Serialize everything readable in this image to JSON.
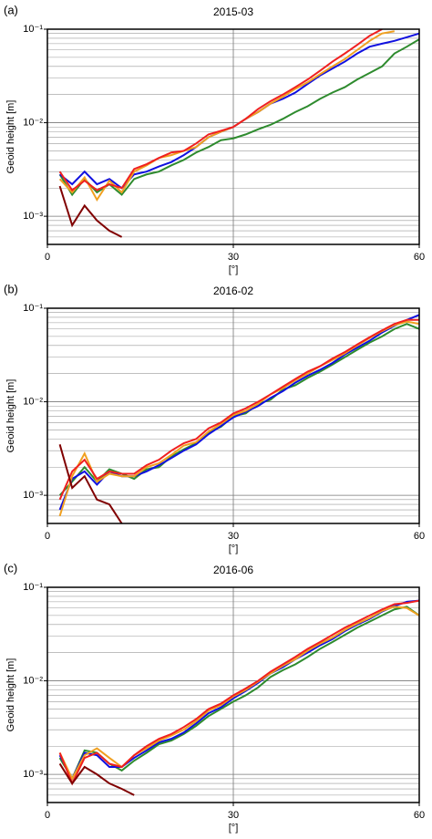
{
  "chart_data": [
    {
      "type": "line",
      "panel_label": "(a)",
      "title": "2015-03",
      "ylabel": "Geoid height [m]",
      "xlabel": "[°]",
      "x": [
        2,
        4,
        6,
        8,
        10,
        12,
        14,
        16,
        18,
        20,
        22,
        24,
        26,
        28,
        30,
        32,
        34,
        36,
        38,
        40,
        42,
        44,
        46,
        48,
        50,
        52,
        54,
        56,
        58,
        60
      ],
      "xlim": [
        0,
        60
      ],
      "xticks": [
        0,
        30,
        60
      ],
      "ylim": [
        0.0005,
        0.1
      ],
      "log_y": true,
      "grid": true,
      "yticks": [
        {
          "value": 0.001,
          "label": "10⁻³"
        },
        {
          "value": 0.01,
          "label": "10⁻²"
        },
        {
          "value": 0.1,
          "label": "10⁻¹"
        }
      ],
      "minor_yticks": [
        0.0006,
        0.0007,
        0.0008,
        0.0009,
        0.002,
        0.003,
        0.004,
        0.005,
        0.006,
        0.007,
        0.008,
        0.009,
        0.02,
        0.03,
        0.04,
        0.05,
        0.06,
        0.07,
        0.08,
        0.09
      ],
      "series": [
        {
          "color": "#2e8b2e",
          "values": [
            0.0028,
            0.0017,
            0.0025,
            0.0018,
            0.0022,
            0.0017,
            0.0025,
            0.0028,
            0.003,
            0.0035,
            0.004,
            0.0048,
            0.0055,
            0.0065,
            0.0068,
            0.0075,
            0.0085,
            0.0095,
            0.011,
            0.013,
            0.015,
            0.018,
            0.021,
            0.024,
            0.029,
            0.034,
            0.04,
            0.055,
            0.065,
            0.078
          ]
        },
        {
          "color": "#1010e0",
          "values": [
            0.0028,
            0.0022,
            0.003,
            0.0022,
            0.0025,
            0.002,
            0.0028,
            0.003,
            0.0034,
            0.0038,
            0.0045,
            0.0055,
            0.007,
            0.008,
            0.009,
            0.011,
            0.013,
            0.016,
            0.018,
            0.021,
            0.026,
            0.032,
            0.038,
            0.045,
            0.055,
            0.065,
            0.07,
            0.075,
            0.082,
            0.09
          ]
        },
        {
          "color": "#f0a020",
          "values": [
            0.0025,
            0.0018,
            0.0026,
            0.0015,
            0.0024,
            0.0018,
            0.003,
            0.0035,
            0.0042,
            0.0045,
            0.005,
            0.0055,
            0.007,
            0.008,
            0.009,
            0.011,
            0.013,
            0.016,
            0.019,
            0.023,
            0.027,
            0.033,
            0.04,
            0.048,
            0.06,
            0.075,
            0.09,
            0.095,
            null,
            null
          ]
        },
        {
          "color": "#f02020",
          "values": [
            0.003,
            0.0019,
            0.0024,
            0.0019,
            0.0022,
            0.002,
            0.0032,
            0.0036,
            0.0042,
            0.0048,
            0.005,
            0.006,
            0.0075,
            0.0082,
            0.009,
            0.011,
            0.014,
            0.017,
            0.02,
            0.024,
            0.029,
            0.036,
            0.045,
            0.055,
            0.068,
            0.085,
            0.1,
            null,
            null,
            null
          ]
        },
        {
          "color": "#800000",
          "values": [
            0.0021,
            0.0008,
            0.0013,
            0.0009,
            0.0007,
            0.0006,
            null,
            null,
            null,
            null,
            null,
            null,
            null,
            null,
            null,
            null,
            null,
            null,
            null,
            null,
            null,
            null,
            null,
            null,
            null,
            null,
            null,
            null,
            null,
            null
          ]
        }
      ]
    },
    {
      "type": "line",
      "panel_label": "(b)",
      "title": "2016-02",
      "ylabel": "Geoid height [m]",
      "xlabel": "[°]",
      "x": [
        2,
        4,
        6,
        8,
        10,
        12,
        14,
        16,
        18,
        20,
        22,
        24,
        26,
        28,
        30,
        32,
        34,
        36,
        38,
        40,
        42,
        44,
        46,
        48,
        50,
        52,
        54,
        56,
        58,
        60
      ],
      "xlim": [
        0,
        60
      ],
      "xticks": [
        0,
        30,
        60
      ],
      "ylim": [
        0.0005,
        0.1
      ],
      "log_y": true,
      "grid": true,
      "yticks": [
        {
          "value": 0.001,
          "label": "10⁻³"
        },
        {
          "value": 0.01,
          "label": "10⁻²"
        },
        {
          "value": 0.1,
          "label": "10⁻¹"
        }
      ],
      "minor_yticks": [
        0.0006,
        0.0007,
        0.0008,
        0.0009,
        0.002,
        0.003,
        0.004,
        0.005,
        0.006,
        0.007,
        0.008,
        0.009,
        0.02,
        0.03,
        0.04,
        0.05,
        0.06,
        0.07,
        0.08,
        0.09
      ],
      "series": [
        {
          "color": "#2e8b2e",
          "values": [
            0.001,
            0.0014,
            0.002,
            0.0014,
            0.0019,
            0.0017,
            0.0015,
            0.0019,
            0.002,
            0.0026,
            0.0031,
            0.0036,
            0.0047,
            0.0054,
            0.007,
            0.0075,
            0.0095,
            0.0105,
            0.0135,
            0.015,
            0.018,
            0.021,
            0.025,
            0.03,
            0.036,
            0.043,
            0.05,
            0.06,
            0.068,
            0.06
          ]
        },
        {
          "color": "#1010e0",
          "values": [
            0.0007,
            0.0015,
            0.0018,
            0.0013,
            0.0018,
            0.0016,
            0.0016,
            0.0018,
            0.0021,
            0.0025,
            0.003,
            0.0035,
            0.0045,
            0.0055,
            0.0068,
            0.0078,
            0.009,
            0.011,
            0.013,
            0.016,
            0.019,
            0.022,
            0.026,
            0.032,
            0.038,
            0.045,
            0.055,
            0.065,
            0.075,
            0.085
          ]
        },
        {
          "color": "#f0a020",
          "values": [
            0.0006,
            0.0016,
            0.0028,
            0.0014,
            0.0017,
            0.0016,
            0.0016,
            0.002,
            0.0022,
            0.0027,
            0.0034,
            0.0037,
            0.0048,
            0.0058,
            0.0072,
            0.008,
            0.0095,
            0.012,
            0.014,
            0.017,
            0.02,
            0.024,
            0.028,
            0.033,
            0.04,
            0.048,
            0.057,
            0.066,
            0.072,
            0.068
          ]
        },
        {
          "color": "#f02020",
          "values": [
            0.0009,
            0.0018,
            0.0024,
            0.0015,
            0.0018,
            0.0017,
            0.0017,
            0.0021,
            0.0024,
            0.003,
            0.0036,
            0.004,
            0.0052,
            0.006,
            0.0075,
            0.0085,
            0.01,
            0.012,
            0.0145,
            0.0175,
            0.021,
            0.024,
            0.029,
            0.034,
            0.041,
            0.049,
            0.058,
            0.068,
            0.075,
            0.075
          ]
        },
        {
          "color": "#800000",
          "values": [
            0.0035,
            0.0012,
            0.0016,
            0.0009,
            0.0008,
            0.0005,
            null,
            null,
            null,
            null,
            null,
            null,
            null,
            null,
            null,
            null,
            null,
            null,
            null,
            null,
            null,
            null,
            null,
            null,
            null,
            null,
            null,
            null,
            null,
            null
          ]
        }
      ]
    },
    {
      "type": "line",
      "panel_label": "(c)",
      "title": "2016-06",
      "ylabel": "Geoid height [m]",
      "xlabel": "[°]",
      "x": [
        2,
        4,
        6,
        8,
        10,
        12,
        14,
        16,
        18,
        20,
        22,
        24,
        26,
        28,
        30,
        32,
        34,
        36,
        38,
        40,
        42,
        44,
        46,
        48,
        50,
        52,
        54,
        56,
        58,
        60
      ],
      "xlim": [
        0,
        60
      ],
      "xticks": [
        0,
        30,
        60
      ],
      "ylim": [
        0.0005,
        0.1
      ],
      "log_y": true,
      "grid": true,
      "yticks": [
        {
          "value": 0.001,
          "label": "10⁻³"
        },
        {
          "value": 0.01,
          "label": "10⁻²"
        },
        {
          "value": 0.1,
          "label": "10⁻¹"
        }
      ],
      "minor_yticks": [
        0.0006,
        0.0007,
        0.0008,
        0.0009,
        0.002,
        0.003,
        0.004,
        0.005,
        0.006,
        0.007,
        0.008,
        0.009,
        0.02,
        0.03,
        0.04,
        0.05,
        0.06,
        0.07,
        0.08,
        0.09
      ],
      "series": [
        {
          "color": "#2e8b2e",
          "values": [
            0.0015,
            0.0009,
            0.0018,
            0.0017,
            0.0013,
            0.0011,
            0.0014,
            0.0017,
            0.0021,
            0.0023,
            0.0027,
            0.0033,
            0.0042,
            0.005,
            0.006,
            0.007,
            0.0085,
            0.011,
            0.013,
            0.015,
            0.018,
            0.022,
            0.026,
            0.031,
            0.037,
            0.043,
            0.05,
            0.058,
            0.062,
            0.05
          ]
        },
        {
          "color": "#1010e0",
          "values": [
            0.0016,
            0.0009,
            0.0017,
            0.0016,
            0.0012,
            0.0012,
            0.0015,
            0.0018,
            0.0022,
            0.0024,
            0.0028,
            0.0035,
            0.0045,
            0.0052,
            0.0065,
            0.0078,
            0.0095,
            0.012,
            0.014,
            0.017,
            0.02,
            0.024,
            0.028,
            0.034,
            0.04,
            0.046,
            0.055,
            0.063,
            0.07,
            0.072
          ]
        },
        {
          "color": "#f0a020",
          "values": [
            0.0017,
            0.0009,
            0.0016,
            0.0019,
            0.0015,
            0.0012,
            0.0016,
            0.0019,
            0.0023,
            0.0026,
            0.003,
            0.0037,
            0.0048,
            0.0055,
            0.0068,
            0.008,
            0.0098,
            0.012,
            0.0145,
            0.017,
            0.021,
            0.025,
            0.029,
            0.035,
            0.041,
            0.047,
            0.056,
            0.062,
            0.06,
            0.05
          ]
        },
        {
          "color": "#f02020",
          "values": [
            0.0017,
            0.0008,
            0.0015,
            0.0017,
            0.0013,
            0.0012,
            0.0016,
            0.002,
            0.0024,
            0.0027,
            0.0032,
            0.0039,
            0.005,
            0.0057,
            0.007,
            0.0083,
            0.01,
            0.0125,
            0.015,
            0.018,
            0.022,
            0.026,
            0.031,
            0.037,
            0.043,
            0.05,
            0.058,
            0.066,
            0.068,
            0.072
          ]
        },
        {
          "color": "#800000",
          "values": [
            0.0013,
            0.0008,
            0.0012,
            0.001,
            0.0008,
            0.0007,
            0.0006,
            null,
            null,
            null,
            null,
            null,
            null,
            null,
            null,
            null,
            null,
            null,
            null,
            null,
            null,
            null,
            null,
            null,
            null,
            null,
            null,
            null,
            null,
            null
          ]
        }
      ]
    }
  ]
}
